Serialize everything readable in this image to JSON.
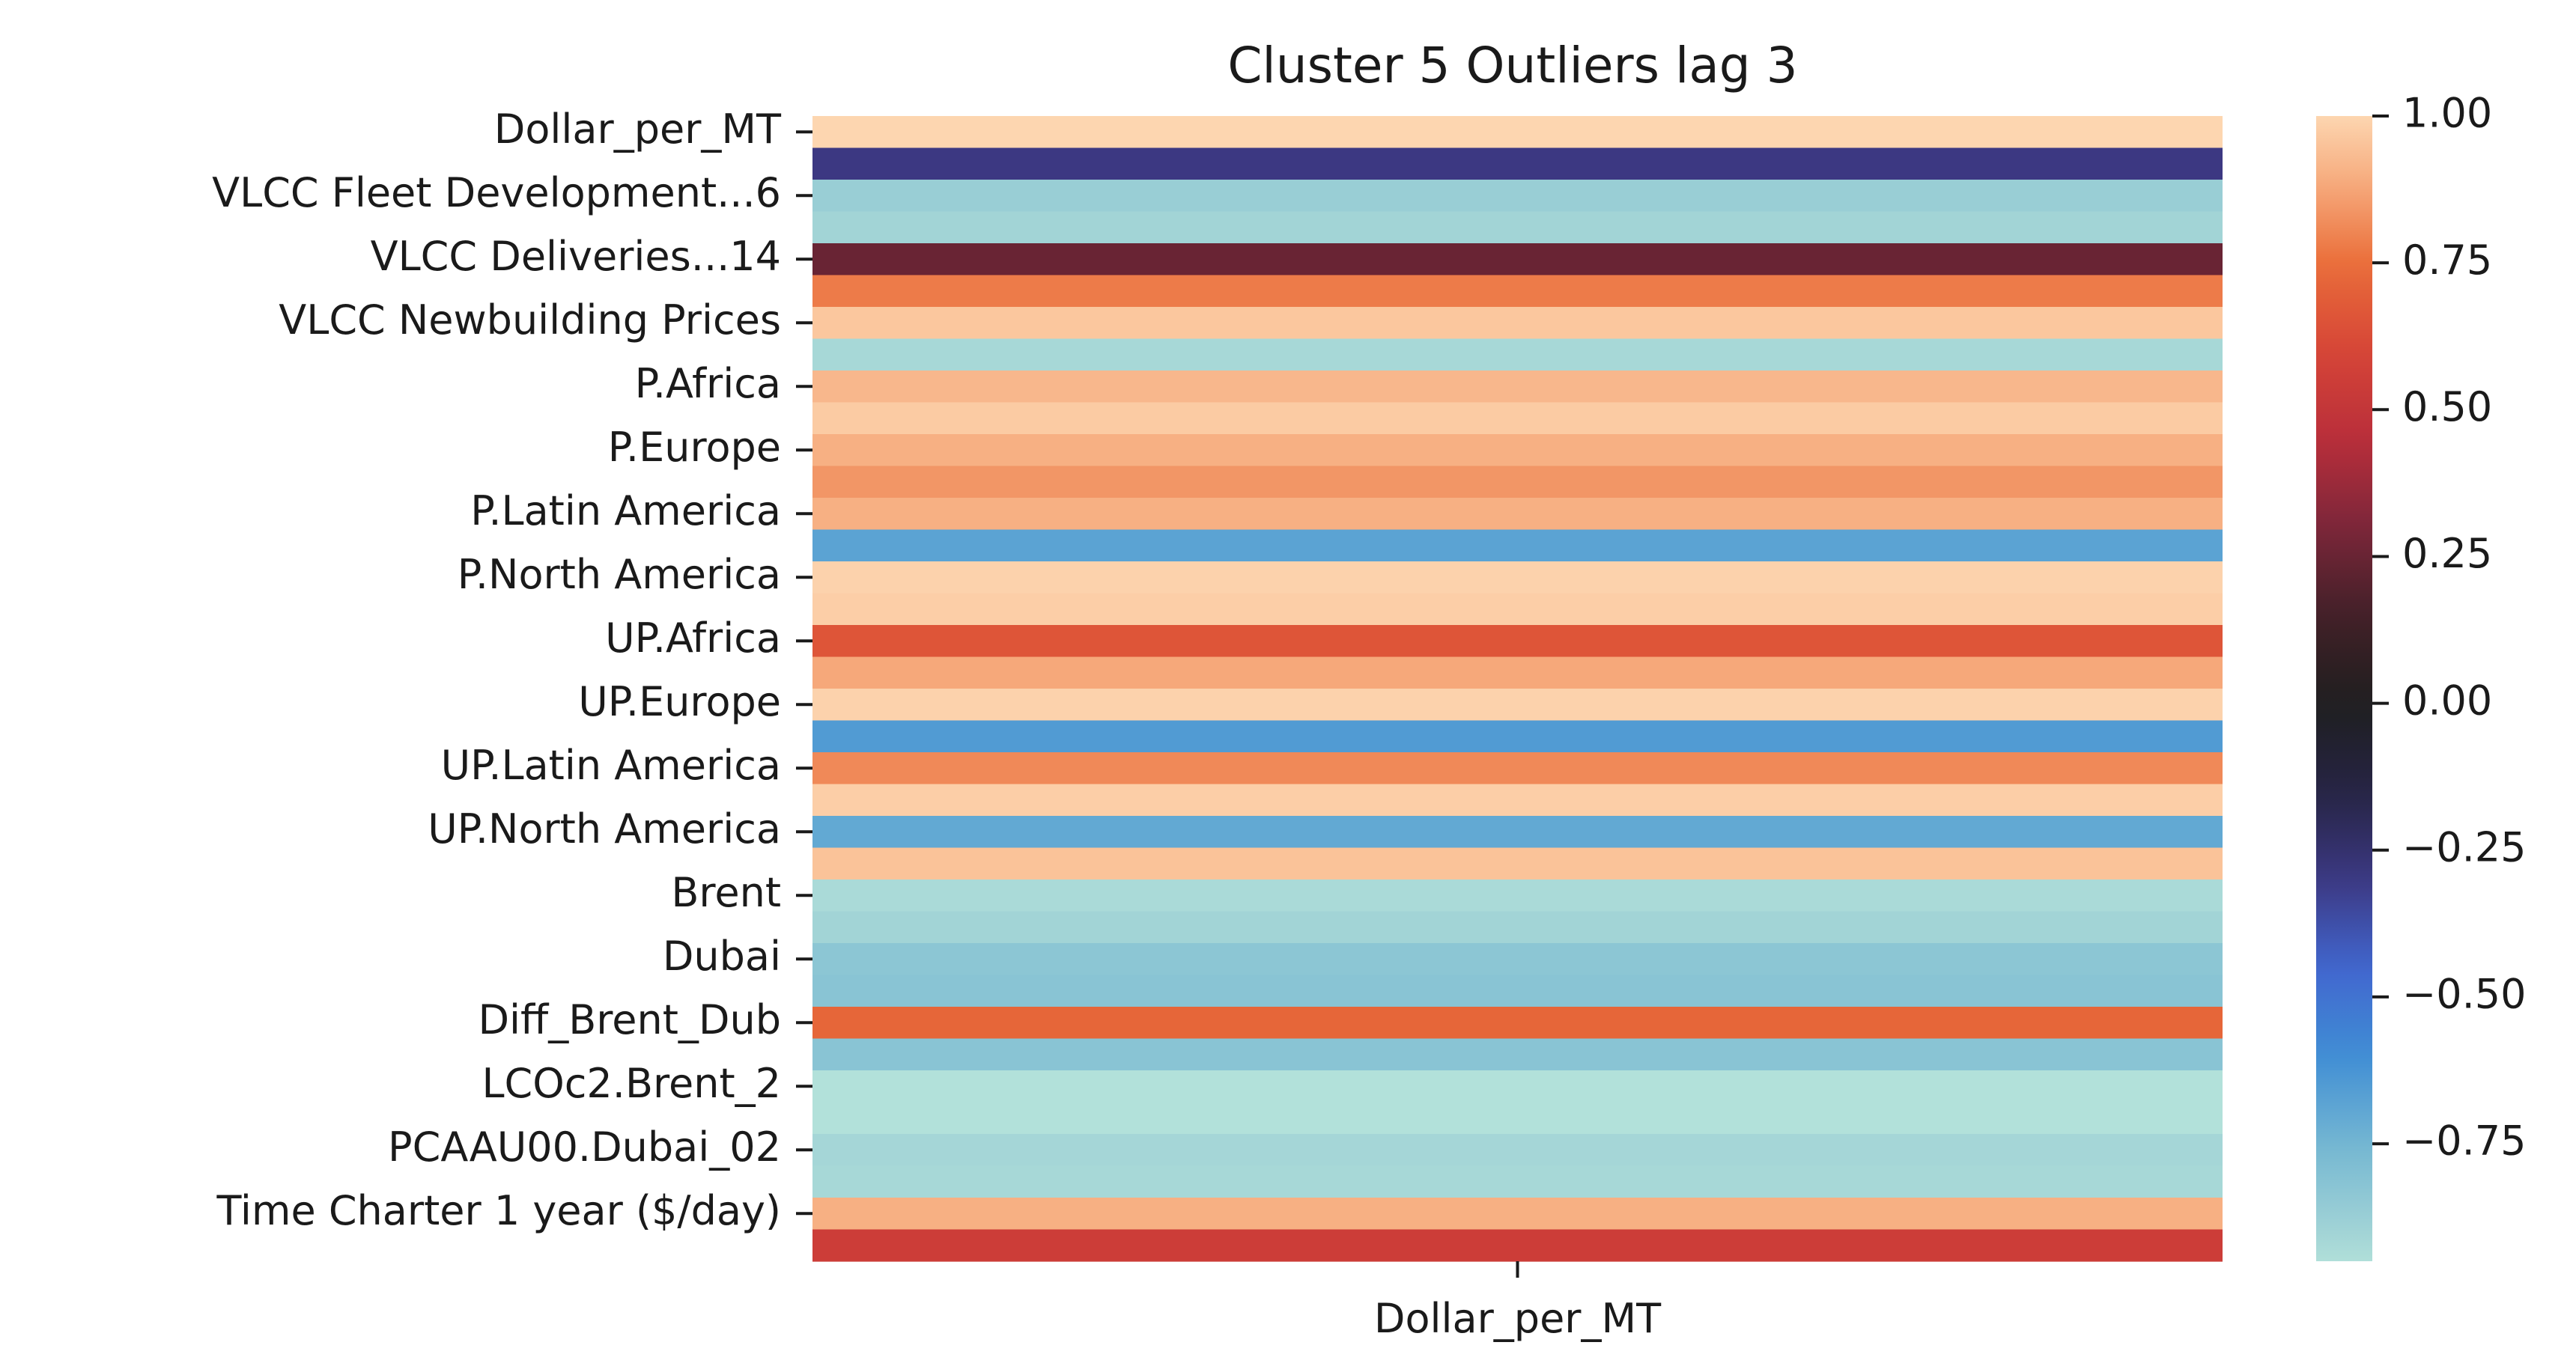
{
  "chart_data": {
    "type": "heatmap",
    "title": "Cluster 5 Outliers lag 3",
    "xlabel": "",
    "ylabel": "",
    "columns": [
      "Dollar_per_MT"
    ],
    "row_tick_labels": [
      "Dollar_per_MT",
      "VLCC Fleet Development...6",
      "VLCC Deliveries...14",
      "VLCC Newbuilding Prices",
      "P.Africa",
      "P.Europe",
      "P.Latin America",
      "P.North America",
      "UP.Africa",
      "UP.Europe",
      "UP.Latin America",
      "UP.North America",
      "Brent",
      "Dubai",
      "Diff_Brent_Dub",
      "LCOc2.Brent_2",
      "PCAAU00.Dubai_02",
      "Time Charter 1 year ($/day)"
    ],
    "row_count": 36,
    "values": [
      1.0,
      -0.3,
      -0.87,
      -0.9,
      0.25,
      0.78,
      0.96,
      -0.92,
      0.92,
      0.97,
      0.9,
      0.84,
      0.9,
      -0.68,
      0.99,
      0.98,
      0.66,
      0.88,
      0.99,
      -0.65,
      0.81,
      0.98,
      -0.7,
      0.95,
      -0.93,
      -0.9,
      -0.83,
      -0.82,
      0.72,
      -0.82,
      -0.96,
      -0.96,
      -0.91,
      -0.92,
      0.9,
      0.55
    ],
    "colorbar": {
      "vmin": -0.95,
      "vmax": 1.0,
      "ticks": [
        "1.00",
        "0.75",
        "0.50",
        "0.25",
        "0.00",
        "−0.25",
        "−0.50",
        "−0.75"
      ],
      "tick_values": [
        1.0,
        0.75,
        0.5,
        0.25,
        0.0,
        -0.25,
        -0.5,
        -0.75
      ],
      "colormap": "icefire"
    },
    "grid": false,
    "legend": "colorbar-right"
  }
}
